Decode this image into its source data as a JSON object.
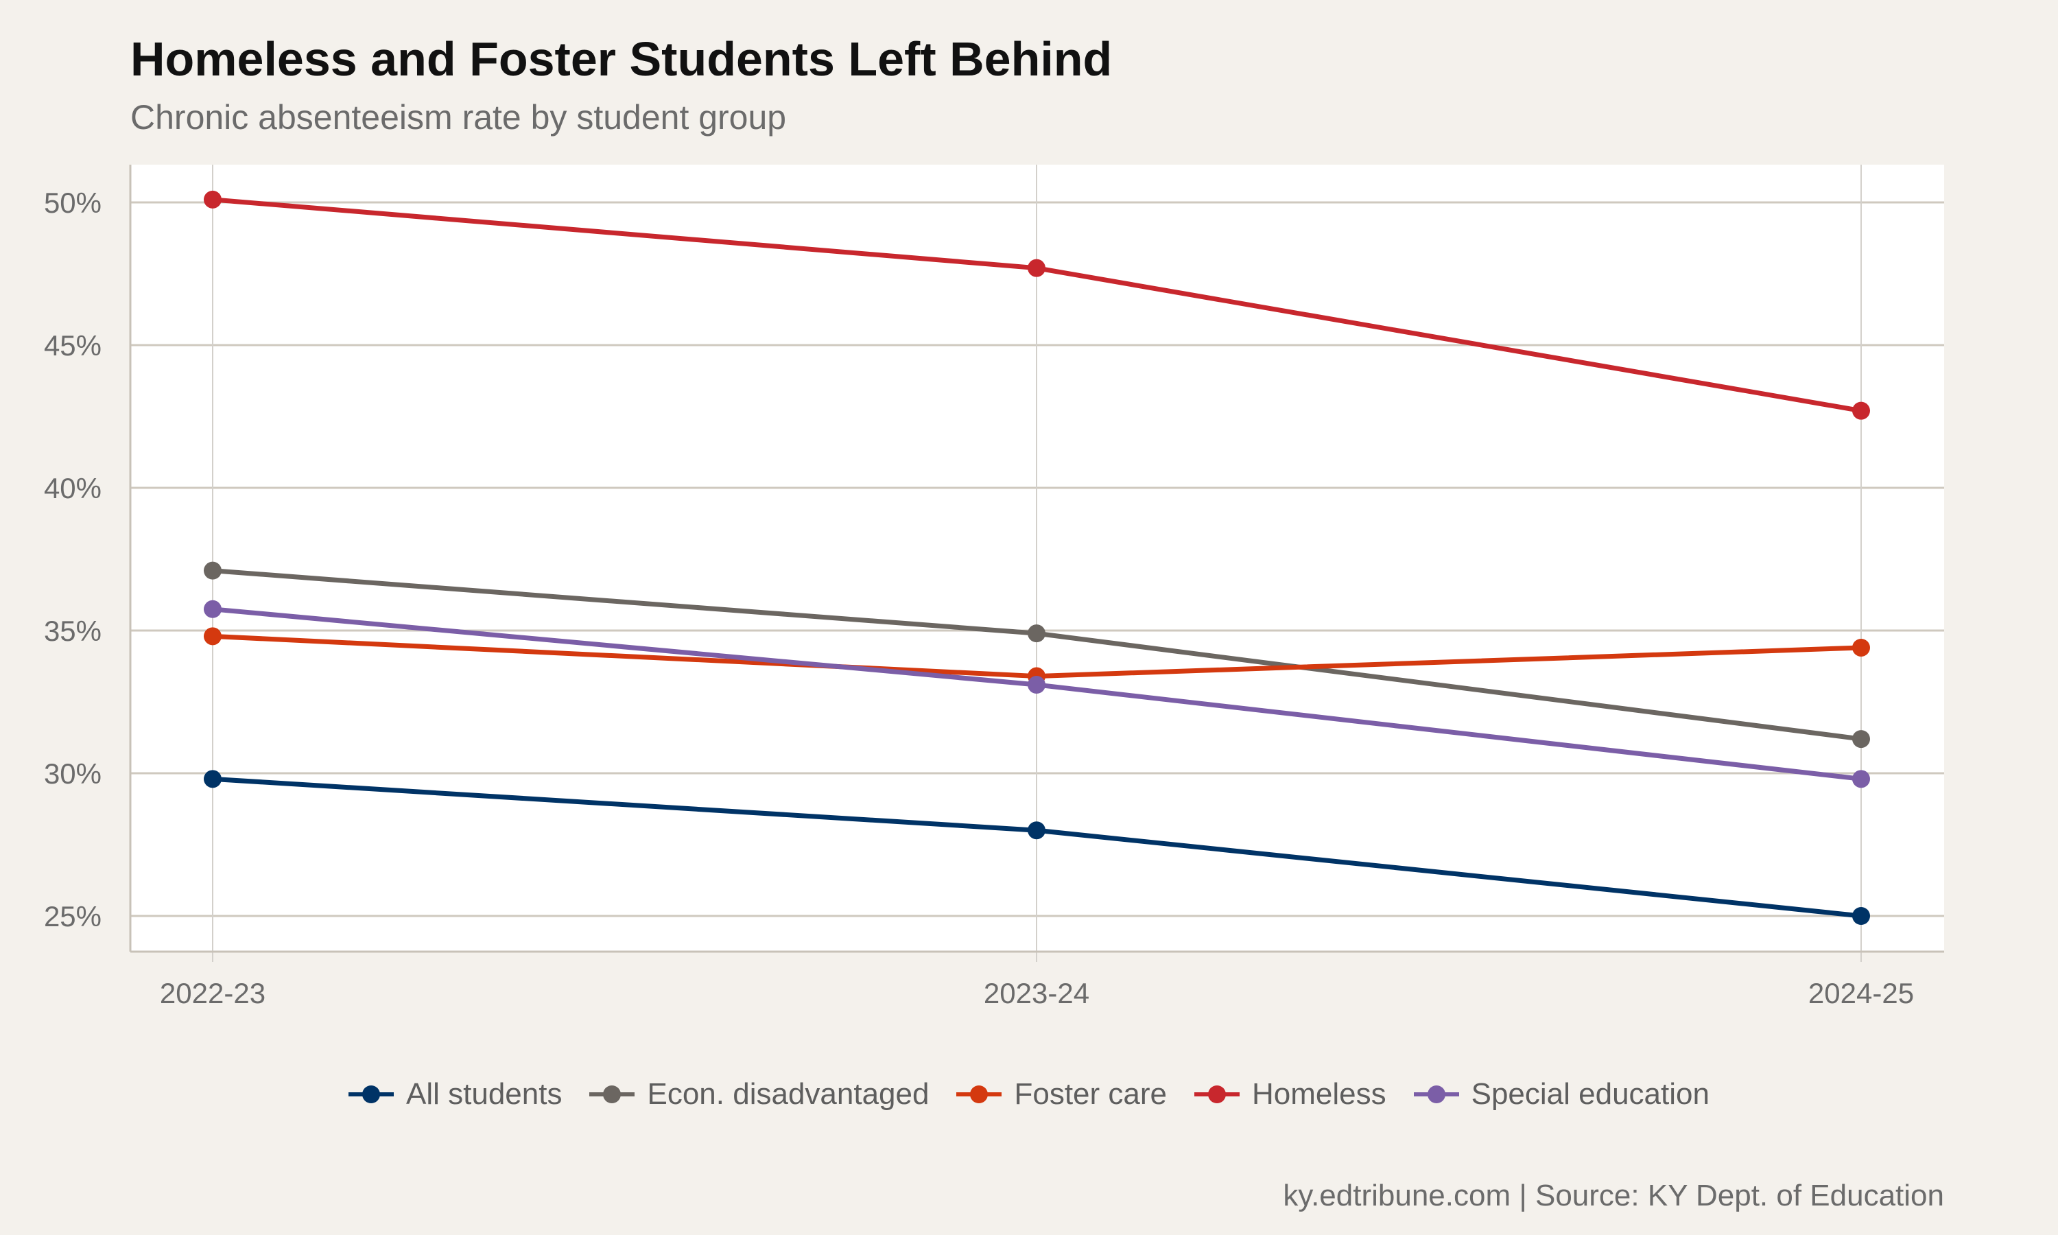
{
  "title": "Homeless and Foster Students Left Behind",
  "subtitle": "Chronic absenteeism rate by student group",
  "caption": "ky.edtribune.com | Source: KY Dept. of Education",
  "chart_data": {
    "type": "line",
    "title": "Homeless and Foster Students Left Behind",
    "subtitle": "Chronic absenteeism rate by student group",
    "xlabel": "",
    "ylabel": "",
    "categories": [
      "2022-23",
      "2023-24",
      "2024-25"
    ],
    "ylim": [
      23.8,
      51.3
    ],
    "yticks": [
      25,
      30,
      35,
      40,
      45,
      50
    ],
    "ytick_labels": [
      "25%",
      "30%",
      "35%",
      "40%",
      "45%",
      "50%"
    ],
    "grid": true,
    "legend_position": "bottom",
    "series": [
      {
        "name": "All students",
        "color": "#003366",
        "values": [
          29.8,
          28.0,
          25.0
        ]
      },
      {
        "name": "Econ. disadvantaged",
        "color": "#6b6661",
        "values": [
          37.1,
          34.9,
          31.2
        ]
      },
      {
        "name": "Foster care",
        "color": "#d4390f",
        "values": [
          34.8,
          33.4,
          34.4
        ]
      },
      {
        "name": "Homeless",
        "color": "#c8272d",
        "values": [
          50.1,
          47.7,
          42.7
        ]
      },
      {
        "name": "Special education",
        "color": "#7b5ea7",
        "values": [
          35.75,
          33.1,
          29.8
        ]
      }
    ]
  }
}
